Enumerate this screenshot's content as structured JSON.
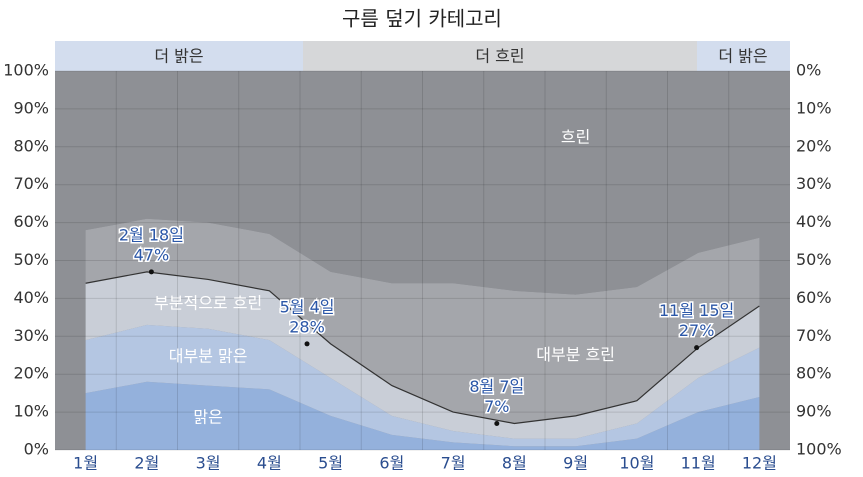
{
  "chart_data": {
    "type": "stacked-area",
    "title": "구름 덮기 카테고리",
    "categories": [
      "1월",
      "2월",
      "3월",
      "4월",
      "5월",
      "6월",
      "7월",
      "8월",
      "9월",
      "10월",
      "11월",
      "12월"
    ],
    "series": [
      {
        "name": "맑은",
        "color": "#94b1dc",
        "values": [
          15,
          18,
          17,
          16,
          9,
          4,
          2,
          1,
          1,
          3,
          10,
          14
        ]
      },
      {
        "name": "대부분 맑은",
        "color": "#b4c6e2",
        "values": [
          14,
          15,
          15,
          13,
          10,
          5,
          3,
          2,
          2,
          4,
          9,
          13
        ]
      },
      {
        "name": "부분적으로 흐린",
        "color": "#c9ced7",
        "values": [
          15,
          14,
          13,
          13,
          9,
          8,
          5,
          4,
          6,
          6,
          8,
          11
        ]
      },
      {
        "name": "대부분 흐린",
        "color": "#a4a6ab",
        "values": [
          14,
          14,
          15,
          15,
          19,
          27,
          34,
          35,
          32,
          30,
          25,
          18
        ]
      },
      {
        "name": "흐린",
        "color": "#8e9095",
        "values": [
          42,
          39,
          40,
          43,
          53,
          56,
          56,
          58,
          59,
          57,
          48,
          44
        ]
      }
    ],
    "ylim": [
      0,
      100
    ],
    "yticks": [
      {
        "value": 0,
        "label": "0%"
      },
      {
        "value": 10,
        "label": "10%"
      },
      {
        "value": 20,
        "label": "20%"
      },
      {
        "value": 30,
        "label": "30%"
      },
      {
        "value": 40,
        "label": "40%"
      },
      {
        "value": 50,
        "label": "50%"
      },
      {
        "value": 60,
        "label": "60%"
      },
      {
        "value": 70,
        "label": "70%"
      },
      {
        "value": 80,
        "label": "80%"
      },
      {
        "value": 90,
        "label": "90%"
      },
      {
        "value": 100,
        "label": "100%"
      }
    ],
    "y2lim": [
      100,
      0
    ],
    "y2ticks": [
      {
        "value": 0,
        "label": "0%"
      },
      {
        "value": 10,
        "label": "10%"
      },
      {
        "value": 20,
        "label": "20%"
      },
      {
        "value": 30,
        "label": "30%"
      },
      {
        "value": 40,
        "label": "40%"
      },
      {
        "value": 50,
        "label": "50%"
      },
      {
        "value": 60,
        "label": "60%"
      },
      {
        "value": 70,
        "label": "70%"
      },
      {
        "value": 80,
        "label": "80%"
      },
      {
        "value": 90,
        "label": "90%"
      },
      {
        "value": 100,
        "label": "100%"
      }
    ],
    "grid": true,
    "seasons": [
      "더 밝은",
      "더 흐린",
      "더 밝은"
    ],
    "annotations": [
      {
        "label": "2월 18일",
        "value": 47,
        "value_label": "47%"
      },
      {
        "label": "5월 4일",
        "value": 28,
        "value_label": "28%"
      },
      {
        "label": "8월 7일",
        "value": 7,
        "value_label": "7%"
      },
      {
        "label": "11월 15일",
        "value": 27,
        "value_label": "27%"
      }
    ]
  }
}
